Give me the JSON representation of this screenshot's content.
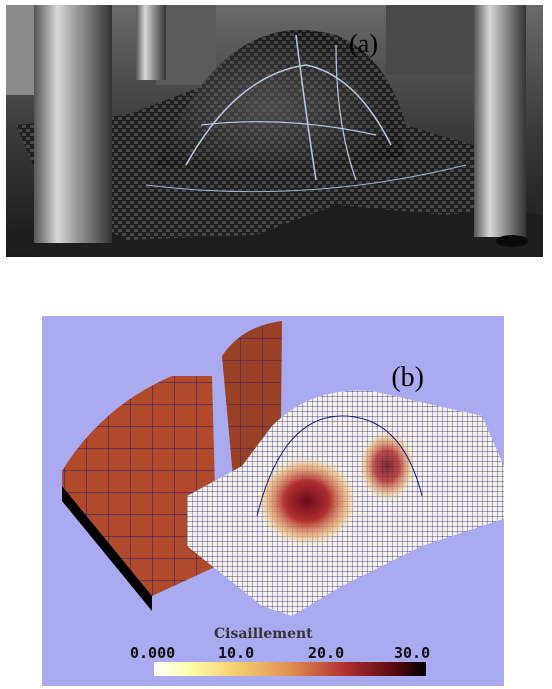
{
  "figure": {
    "panel_a": {
      "label": "(a)",
      "image": "photo of carbon fibre woven fabric formed over a hemispherical punch between steel columns"
    },
    "panel_b": {
      "label": "(b)",
      "image": "finite element simulation mesh of the formed fabric, blank holder and punch, shaded by shear",
      "colorbar": {
        "title": "Cisaillement",
        "ticks": [
          "0.000",
          "10.0",
          "20.0",
          "30.0"
        ],
        "colors": [
          "#ffffff",
          "#ffffb0",
          "#e09050",
          "#b03030",
          "#000000"
        ]
      },
      "background_color": "#aaaaf0"
    }
  }
}
